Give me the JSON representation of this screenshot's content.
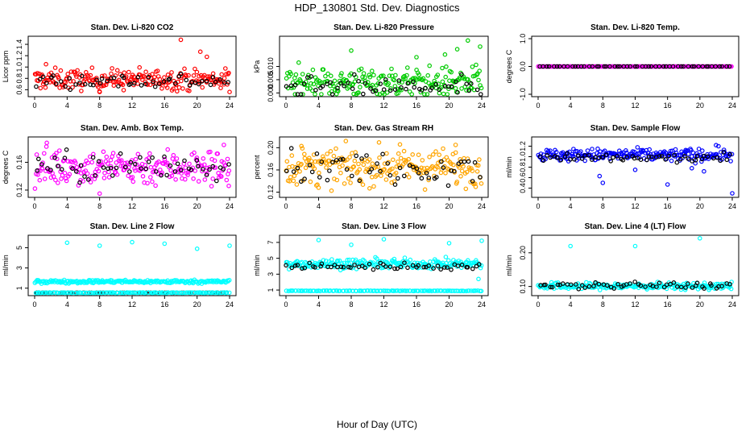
{
  "title": "HDP_130801  Std. Dev. Diagnostics",
  "xlabel": "Hour of Day (UTC)",
  "chart_data": [
    {
      "type": "scatter",
      "title": "Stan. Dev. Li-820 CO2",
      "ylabel": "Licor ppm",
      "xlim": [
        0,
        24
      ],
      "ylim": [
        0.52,
        1.5
      ],
      "xticks": [
        "0",
        "4",
        "8",
        "12",
        "16",
        "20",
        "24"
      ],
      "yticks": [
        "0.6",
        "0.8",
        "1.0",
        "1.2",
        "1.4"
      ],
      "series": [
        {
          "color": "#ff0000",
          "center": 0.78,
          "spread": 0.09
        },
        {
          "color": "#000000",
          "center": 0.76,
          "spread": 0.07
        }
      ],
      "outliers": [
        [
          18.0,
          1.48
        ],
        [
          20.4,
          1.27
        ],
        [
          21.2,
          1.18
        ],
        [
          8.0,
          0.56
        ],
        [
          24.0,
          0.56
        ],
        [
          1.4,
          1.05
        ]
      ]
    },
    {
      "type": "scatter",
      "title": "Stan. Dev. Li-820 Pressure",
      "ylabel": "kPa",
      "xlim": [
        0,
        24
      ],
      "ylim": [
        -0.0005,
        0.0205
      ],
      "xticks": [
        "0",
        "4",
        "8",
        "12",
        "16",
        "20",
        "24"
      ],
      "yticks": [
        "0.000",
        "0.005",
        "0.010"
      ],
      "series": [
        {
          "color": "#00cc00",
          "center": 0.004,
          "spread": 0.0028
        },
        {
          "color": "#000000",
          "center": 0.002,
          "spread": 0.002
        }
      ],
      "outliers": [
        [
          22.3,
          0.0198
        ],
        [
          23.8,
          0.0175
        ],
        [
          8.0,
          0.016
        ],
        [
          21.0,
          0.0165
        ],
        [
          19.5,
          0.0145
        ],
        [
          16.0,
          0.0135
        ]
      ]
    },
    {
      "type": "scatter",
      "title": "Stan. Dev. Li-820 Temp.",
      "ylabel": "degrees C",
      "xlim": [
        0,
        24
      ],
      "ylim": [
        -1.0,
        1.0
      ],
      "xticks": [
        "0",
        "4",
        "8",
        "12",
        "16",
        "20",
        "24"
      ],
      "yticks": [
        "-1.0",
        "0.0",
        "1.0"
      ],
      "series": [
        {
          "color": "#ff00ff",
          "center": 0.0,
          "spread": 0.0
        },
        {
          "color": "#000000",
          "center": 0.0,
          "spread": 0.0
        }
      ],
      "outliers": []
    },
    {
      "type": "scatter",
      "title": "Stan. Dev. Amb. Box Temp.",
      "ylabel": "degrees C",
      "xlim": [
        0,
        24
      ],
      "ylim": [
        0.113,
        0.193
      ],
      "xticks": [
        "0",
        "4",
        "8",
        "12",
        "16",
        "20",
        "24"
      ],
      "yticks": [
        "0.12",
        "0.16"
      ],
      "series": [
        {
          "color": "#ff00ff",
          "center": 0.153,
          "spread": 0.013
        },
        {
          "color": "#000000",
          "center": 0.153,
          "spread": 0.011
        }
      ],
      "outliers": [
        [
          8.0,
          0.115
        ],
        [
          1.5,
          0.188
        ],
        [
          23.3,
          0.185
        ],
        [
          23.9,
          0.126
        ]
      ]
    },
    {
      "type": "scatter",
      "title": "Stan. Dev. Gas Stream RH",
      "ylabel": "percent",
      "xlim": [
        0,
        24
      ],
      "ylim": [
        0.115,
        0.215
      ],
      "xticks": [
        "0",
        "4",
        "8",
        "12",
        "16",
        "20",
        "24"
      ],
      "yticks": [
        "0.12",
        "0.16",
        "0.20"
      ],
      "series": [
        {
          "color": "#ffa500",
          "center": 0.165,
          "spread": 0.016
        },
        {
          "color": "#000000",
          "center": 0.165,
          "spread": 0.014
        }
      ],
      "outliers": [
        [
          1.9,
          0.203
        ],
        [
          20.8,
          0.205
        ],
        [
          4.0,
          0.128
        ]
      ]
    },
    {
      "type": "scatter",
      "title": "Stan. Dev. Sample Flow",
      "ylabel": "ml/min",
      "xlim": [
        0,
        24
      ],
      "ylim": [
        0.27,
        1.33
      ],
      "xticks": [
        "0",
        "4",
        "8",
        "12",
        "16",
        "20",
        "24"
      ],
      "yticks": [
        "0.4",
        "0.6",
        "0.8",
        "1.0",
        "1.2"
      ],
      "series": [
        {
          "color": "#0000ff",
          "center": 1.03,
          "spread": 0.06
        },
        {
          "color": "#000000",
          "center": 0.97,
          "spread": 0.04
        }
      ],
      "outliers": [
        [
          24.0,
          0.3
        ],
        [
          16.0,
          0.47
        ],
        [
          8.0,
          0.5
        ],
        [
          7.6,
          0.63
        ],
        [
          19.0,
          0.78
        ],
        [
          20.5,
          0.72
        ],
        [
          22.0,
          1.22
        ],
        [
          12.0,
          0.75
        ]
      ]
    },
    {
      "type": "scatter",
      "title": "Stan. Dev. Line 2 Flow",
      "ylabel": "ml/min",
      "xlim": [
        0,
        24
      ],
      "ylim": [
        0.5,
        6.0
      ],
      "xticks": [
        "0",
        "4",
        "8",
        "12",
        "16",
        "20",
        "24"
      ],
      "yticks": [
        "1",
        "3",
        "5"
      ],
      "series": [
        {
          "color": "#00ffff",
          "center": 1.65,
          "spread": 0.08
        },
        {
          "color": "#000000",
          "center": 0.55,
          "spread": 0.0
        }
      ],
      "extra_band": {
        "color": "#00ffff",
        "center": 0.55
      },
      "outliers": [
        [
          4.0,
          5.5
        ],
        [
          8.0,
          5.2
        ],
        [
          12.0,
          5.55
        ],
        [
          16.0,
          5.4
        ],
        [
          20.0,
          4.9
        ],
        [
          24.0,
          5.2
        ]
      ]
    },
    {
      "type": "scatter",
      "title": "Stan. Dev. Line 3 Flow",
      "ylabel": "ml/min",
      "xlim": [
        0,
        24
      ],
      "ylim": [
        0.6,
        7.6
      ],
      "xticks": [
        "0",
        "4",
        "8",
        "12",
        "16",
        "20",
        "24"
      ],
      "yticks": [
        "1",
        "3",
        "5",
        "7"
      ],
      "series": [
        {
          "color": "#00ffff",
          "center": 4.3,
          "spread": 0.3
        },
        {
          "color": "#000000",
          "center": 4.0,
          "spread": 0.2
        }
      ],
      "extra_band": {
        "color": "#00ffff",
        "center": 0.9
      },
      "outliers": [
        [
          4.0,
          7.3
        ],
        [
          8.0,
          6.7
        ],
        [
          12.0,
          7.4
        ],
        [
          20.0,
          6.9
        ],
        [
          24.0,
          7.2
        ],
        [
          23.6,
          2.4
        ]
      ]
    },
    {
      "type": "scatter",
      "title": "Stan. Dev. Line 4 (LT) Flow",
      "ylabel": "ml/min",
      "xlim": [
        0,
        24
      ],
      "ylim": [
        0.08,
        0.245
      ],
      "xticks": [
        "0",
        "4",
        "8",
        "12",
        "16",
        "20",
        "24"
      ],
      "yticks": [
        "0.10",
        "0.20"
      ],
      "series": [
        {
          "color": "#00ffff",
          "center": 0.101,
          "spread": 0.005
        },
        {
          "color": "#000000",
          "center": 0.103,
          "spread": 0.005
        }
      ],
      "outliers": [
        [
          4.0,
          0.22
        ],
        [
          12.0,
          0.22
        ],
        [
          20.0,
          0.243
        ]
      ]
    }
  ]
}
